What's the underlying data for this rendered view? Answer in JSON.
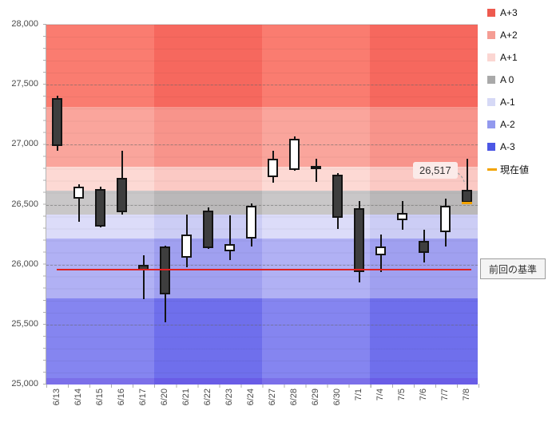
{
  "chart_data": {
    "type": "candlestick",
    "title": "",
    "dates": [
      "6/13",
      "6/14",
      "6/15",
      "6/16",
      "6/17",
      "6/20",
      "6/21",
      "6/22",
      "6/23",
      "6/24",
      "6/27",
      "6/28",
      "6/29",
      "6/30",
      "7/1",
      "7/4",
      "7/5",
      "7/6",
      "7/7",
      "7/8"
    ],
    "ohlc": [
      [
        27390,
        27410,
        26950,
        26990
      ],
      [
        26550,
        26670,
        26360,
        26650
      ],
      [
        26630,
        26650,
        26310,
        26320
      ],
      [
        26720,
        26950,
        26420,
        26440
      ],
      [
        26000,
        26080,
        25710,
        25950
      ],
      [
        26150,
        26160,
        25520,
        25750
      ],
      [
        26060,
        26420,
        25980,
        26250
      ],
      [
        26450,
        26480,
        26130,
        26140
      ],
      [
        26110,
        26410,
        26040,
        26170
      ],
      [
        26220,
        26510,
        26150,
        26490
      ],
      [
        26730,
        26950,
        26680,
        26880
      ],
      [
        26790,
        27070,
        26780,
        27050
      ],
      [
        26820,
        26880,
        26690,
        26795
      ],
      [
        26750,
        26760,
        26300,
        26390
      ],
      [
        26470,
        26530,
        25850,
        25940
      ],
      [
        26080,
        26250,
        25940,
        26150
      ],
      [
        26370,
        26530,
        26290,
        26430
      ],
      [
        26200,
        26290,
        26020,
        26100
      ],
      [
        26270,
        26550,
        26150,
        26490
      ],
      [
        26620,
        26880,
        26517,
        26517
      ]
    ],
    "ylim": [
      25000,
      28000
    ],
    "y_tick_step": 500,
    "y_tick_labels": [
      "28,000",
      "27,500",
      "27,000",
      "26,500",
      "26,000",
      "25,500",
      "25,000"
    ],
    "bands": [
      {
        "label": "A+3",
        "upper": 28000,
        "lower": 27317,
        "light": "#fa7c70",
        "dark": "#f6685e"
      },
      {
        "label": "A+2",
        "upper": 27317,
        "lower": 26817,
        "light": "#faa59c",
        "dark": "#f8948b"
      },
      {
        "label": "A+1",
        "upper": 26817,
        "lower": 26617,
        "light": "#fdd9d4",
        "dark": "#fbc9c4"
      },
      {
        "label": "A 0",
        "upper": 26617,
        "lower": 26417,
        "light": "#c9c7c8",
        "dark": "#bab8b9"
      },
      {
        "label": "A-1",
        "upper": 26417,
        "lower": 26217,
        "light": "#dcdcf9",
        "dark": "#cccdf5"
      },
      {
        "label": "A-2",
        "upper": 26217,
        "lower": 25717,
        "light": "#b1b1f4",
        "dark": "#a0a0f0"
      },
      {
        "label": "A-3",
        "upper": 25717,
        "lower": 25000,
        "light": "#8585f0",
        "dark": "#6f6fec"
      }
    ],
    "week_shading": {
      "candles_per_week": 5,
      "pattern": [
        "light",
        "dark",
        "light",
        "dark"
      ]
    },
    "legend": [
      {
        "label": "A+3",
        "color": "#ee5a4f",
        "marker": "square"
      },
      {
        "label": "A+2",
        "color": "#f59d94",
        "marker": "square"
      },
      {
        "label": "A+1",
        "color": "#fbd6d2",
        "marker": "square"
      },
      {
        "label": "A 0",
        "color": "#a9a9a9",
        "marker": "square"
      },
      {
        "label": "A-1",
        "color": "#d6d9f6",
        "marker": "square"
      },
      {
        "label": "A-2",
        "color": "#9299ee",
        "marker": "square"
      },
      {
        "label": "A-3",
        "color": "#4c57e5",
        "marker": "square"
      },
      {
        "label": "現在値",
        "color": "#f2a300",
        "marker": "dash"
      }
    ],
    "baseline": {
      "label": "前回の基準",
      "value": 25950
    },
    "current_value": {
      "label": "26,517",
      "value": 26517
    }
  },
  "colors": {
    "candle_up_fill": "#ffffff",
    "candle_down_fill": "#3e3e3e",
    "candle_border": "#141414",
    "wick": "#141414",
    "baseline_line": "#df2121",
    "current_marker": "#f2a300",
    "bottom_strip_light": "#7b6fe9",
    "bottom_strip_dark": "#695ce6",
    "leader_line": "#a3a3a3"
  }
}
